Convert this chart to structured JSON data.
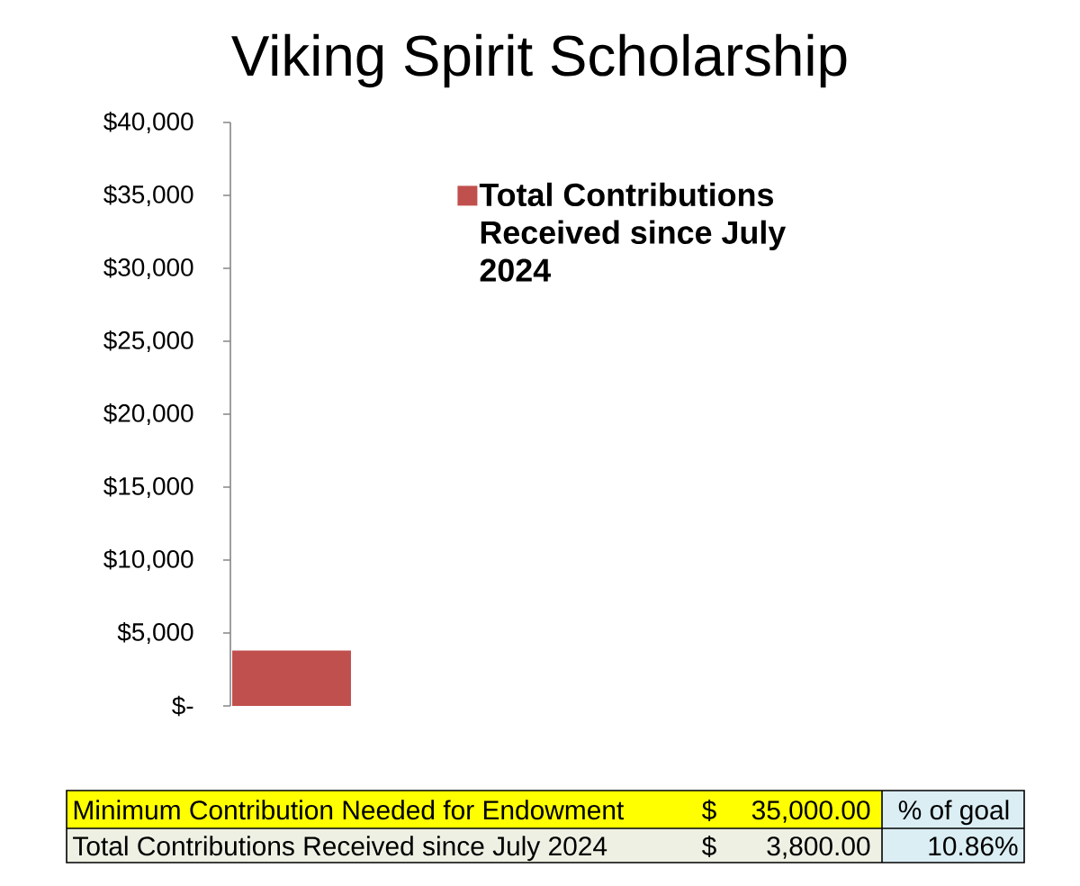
{
  "chart_data": {
    "type": "bar",
    "title": "Viking Spirit Scholarship",
    "categories": [
      null
    ],
    "series": [
      {
        "name": "Total Contributions Received since July 2024",
        "color": "#c0504d",
        "values": [
          3800
        ]
      }
    ],
    "ylim": [
      0,
      40000
    ],
    "yticks": [
      {
        "value": 0,
        "label": "$-"
      },
      {
        "value": 5000,
        "label": "$5,000"
      },
      {
        "value": 10000,
        "label": "$10,000"
      },
      {
        "value": 15000,
        "label": "$15,000"
      },
      {
        "value": 20000,
        "label": "$20,000"
      },
      {
        "value": 25000,
        "label": "$25,000"
      },
      {
        "value": 30000,
        "label": "$30,000"
      },
      {
        "value": 35000,
        "label": "$35,000"
      },
      {
        "value": 40000,
        "label": "$40,000"
      }
    ],
    "tick_labels": "y",
    "legend": "right",
    "annotations": [
      "Minimum Contribution Needed for Endowment",
      "$",
      "35,000.00",
      "% of goal",
      "Total Contributions Received since July 2024",
      "$",
      "3,800.00",
      "10.86%"
    ]
  }
}
